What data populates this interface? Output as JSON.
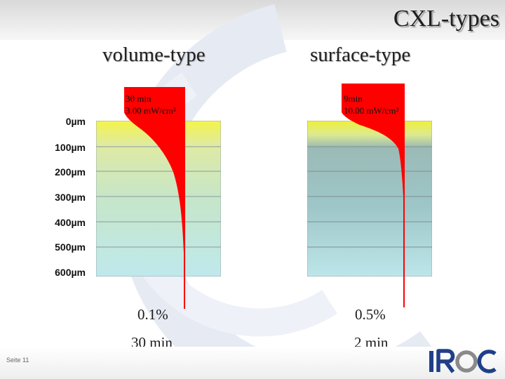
{
  "slide": {
    "title": "CXL-types",
    "footer": "Seite 11"
  },
  "columns": [
    {
      "heading": "volume-type",
      "dose_line1": "30 min",
      "dose_line2": "3.00 mW/cm²",
      "percent": "0.1%",
      "time": "30 min"
    },
    {
      "heading": "surface-type",
      "dose_line1": "9min",
      "dose_line2": "10.00 mW/cm²",
      "percent": "0.5%",
      "time": "2 min"
    }
  ],
  "depth_labels": [
    "0µm",
    "100µm",
    "200µm",
    "300µm",
    "400µm",
    "500µm",
    "600µm"
  ],
  "logo": {
    "text": "IROC"
  },
  "colors": {
    "red": "#ff0000",
    "yellow": "#f4f44a",
    "cyan": "#bfe8ec",
    "teal": "#8fb3b6",
    "logo_blue": "#1f3f88",
    "logo_gray": "#8a8a8a"
  }
}
